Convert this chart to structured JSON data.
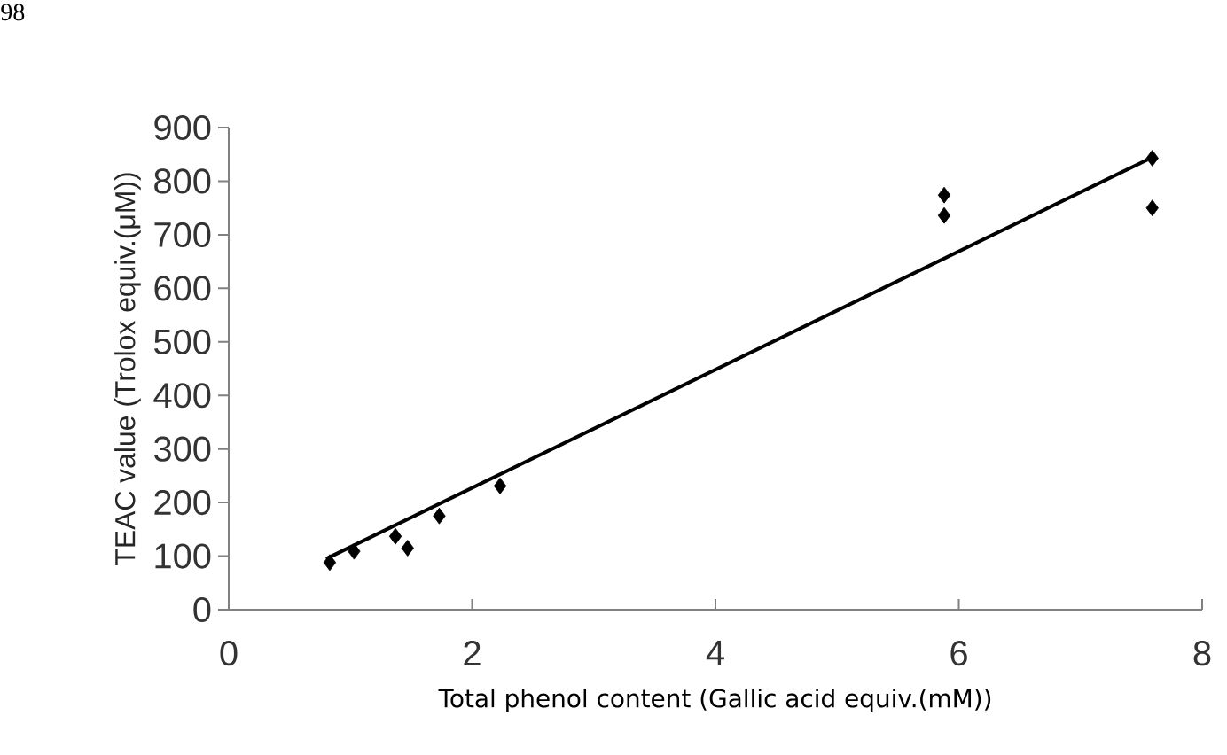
{
  "chart_data": {
    "type": "scatter",
    "xlabel": "Total phenol content (Gallic acid equiv.(mM))",
    "ylabel": "TEAC value (Trolox equiv.(μM))",
    "xlim": [
      0,
      8
    ],
    "xticks": [
      0,
      2,
      4,
      6,
      8
    ],
    "ylim": [
      0,
      900
    ],
    "yticks": [
      0,
      100,
      200,
      300,
      400,
      500,
      600,
      700,
      800,
      900
    ],
    "marker": "diamond",
    "annotations": [
      "98"
    ],
    "series": [
      {
        "color": "#000000",
        "x": [
          0.83,
          1.03,
          1.37,
          1.47,
          1.73,
          2.23,
          5.88,
          5.88,
          7.59,
          7.59
        ],
        "values": [
          88,
          109,
          137,
          115,
          175,
          231,
          774,
          736,
          843,
          750
        ]
      },
      {
        "type": "line",
        "marker": "none",
        "color": "#000000",
        "x": [
          0.8,
          7.55
        ],
        "values": [
          95,
          840
        ]
      }
    ]
  }
}
